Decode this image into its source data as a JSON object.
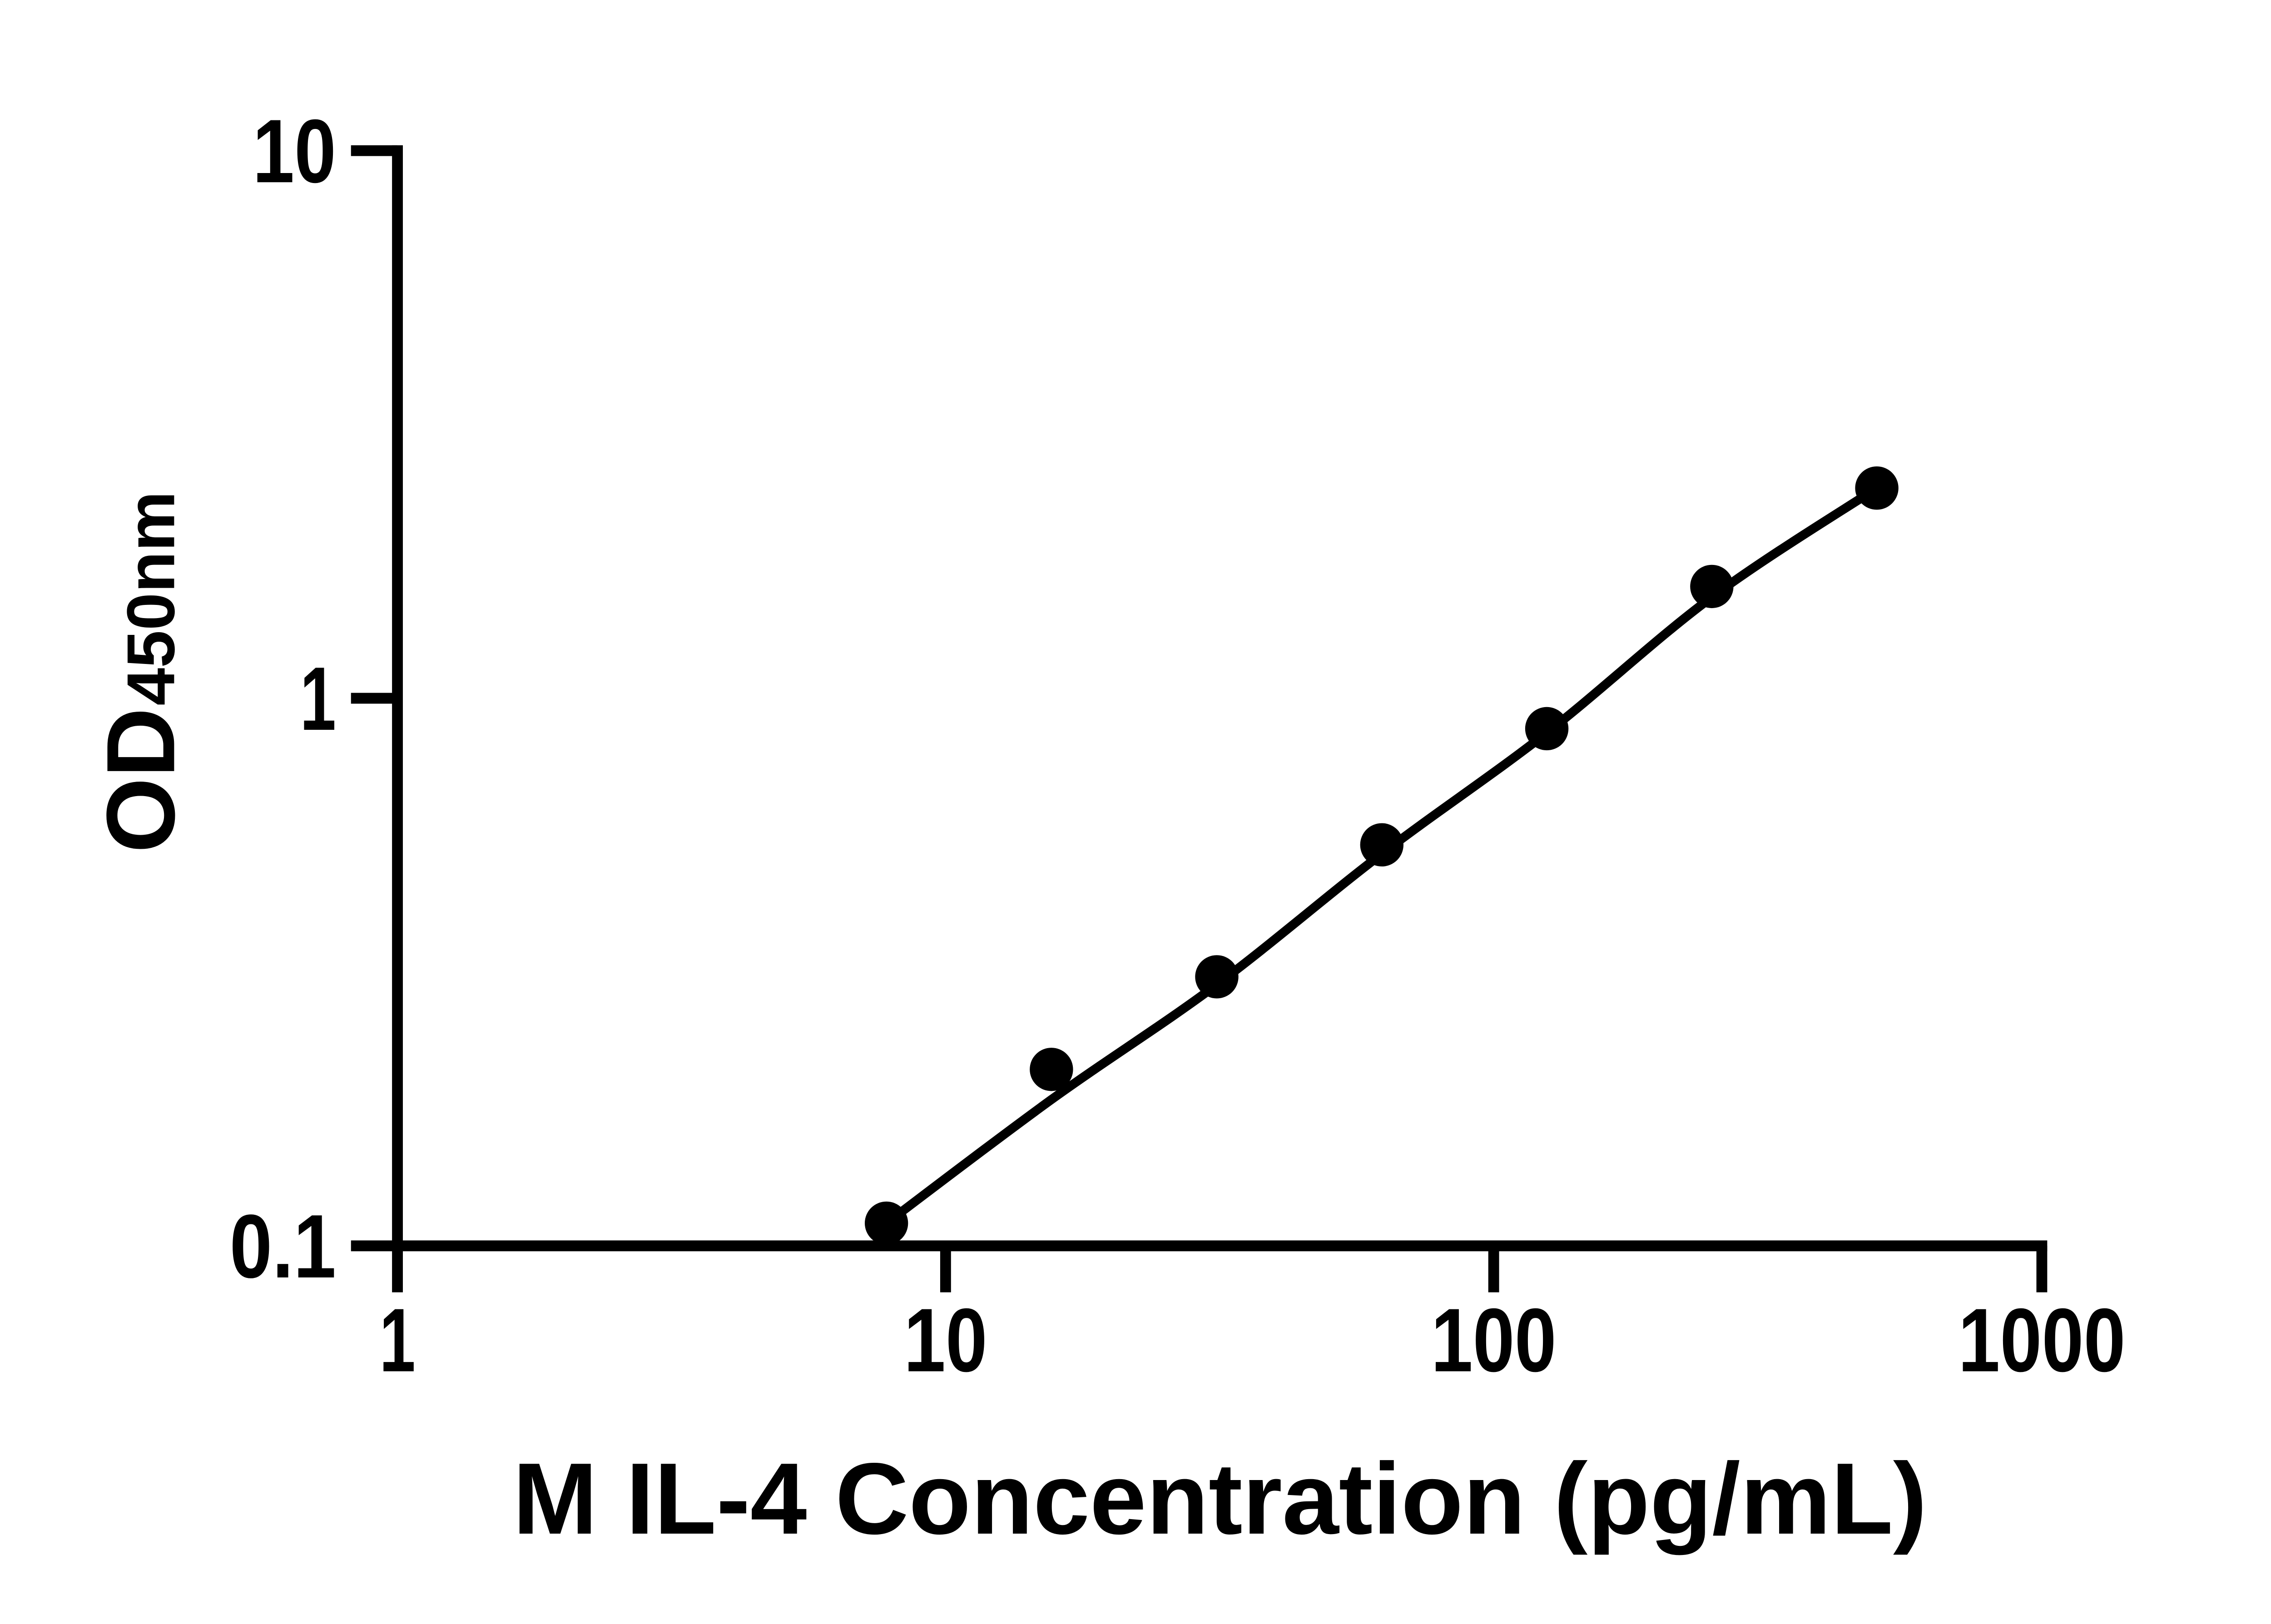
{
  "figure": {
    "background": "#ffffff",
    "foreground": "#000000"
  },
  "chart_data": {
    "type": "scatter",
    "title": "",
    "xlabel": "M IL-4 Concentration (pg/mL)",
    "ylabel": "OD450nm",
    "ylabel_main": "OD",
    "ylabel_sub": "450nm",
    "x_scale": "log",
    "y_scale": "log",
    "xlim": [
      1,
      1000
    ],
    "ylim": [
      0.1,
      10
    ],
    "x_ticks": [
      1,
      10,
      100,
      1000
    ],
    "x_tick_labels": [
      "1",
      "10",
      "100",
      "1000"
    ],
    "y_ticks": [
      0.1,
      1,
      10
    ],
    "y_tick_labels": [
      "0.1",
      "1",
      "10"
    ],
    "grid": false,
    "legend": false,
    "marker": "filled-circle",
    "series": [
      {
        "points": [
          {
            "concentration_pg_ml": 7.8,
            "od450": 0.11
          },
          {
            "concentration_pg_ml": 15.6,
            "od450": 0.21
          },
          {
            "concentration_pg_ml": 31.25,
            "od450": 0.31
          },
          {
            "concentration_pg_ml": 62.5,
            "od450": 0.54
          },
          {
            "concentration_pg_ml": 125,
            "od450": 0.88
          },
          {
            "concentration_pg_ml": 250,
            "od450": 1.6
          },
          {
            "concentration_pg_ml": 500,
            "od450": 2.42
          }
        ]
      }
    ],
    "trend_line": {
      "style": "fitted standard curve",
      "points": [
        [
          7.8,
          0.11
        ],
        [
          15.6,
          0.185
        ],
        [
          31.25,
          0.3
        ],
        [
          62.5,
          0.52
        ],
        [
          125,
          0.865
        ],
        [
          250,
          1.53
        ],
        [
          500,
          2.42
        ]
      ]
    }
  }
}
